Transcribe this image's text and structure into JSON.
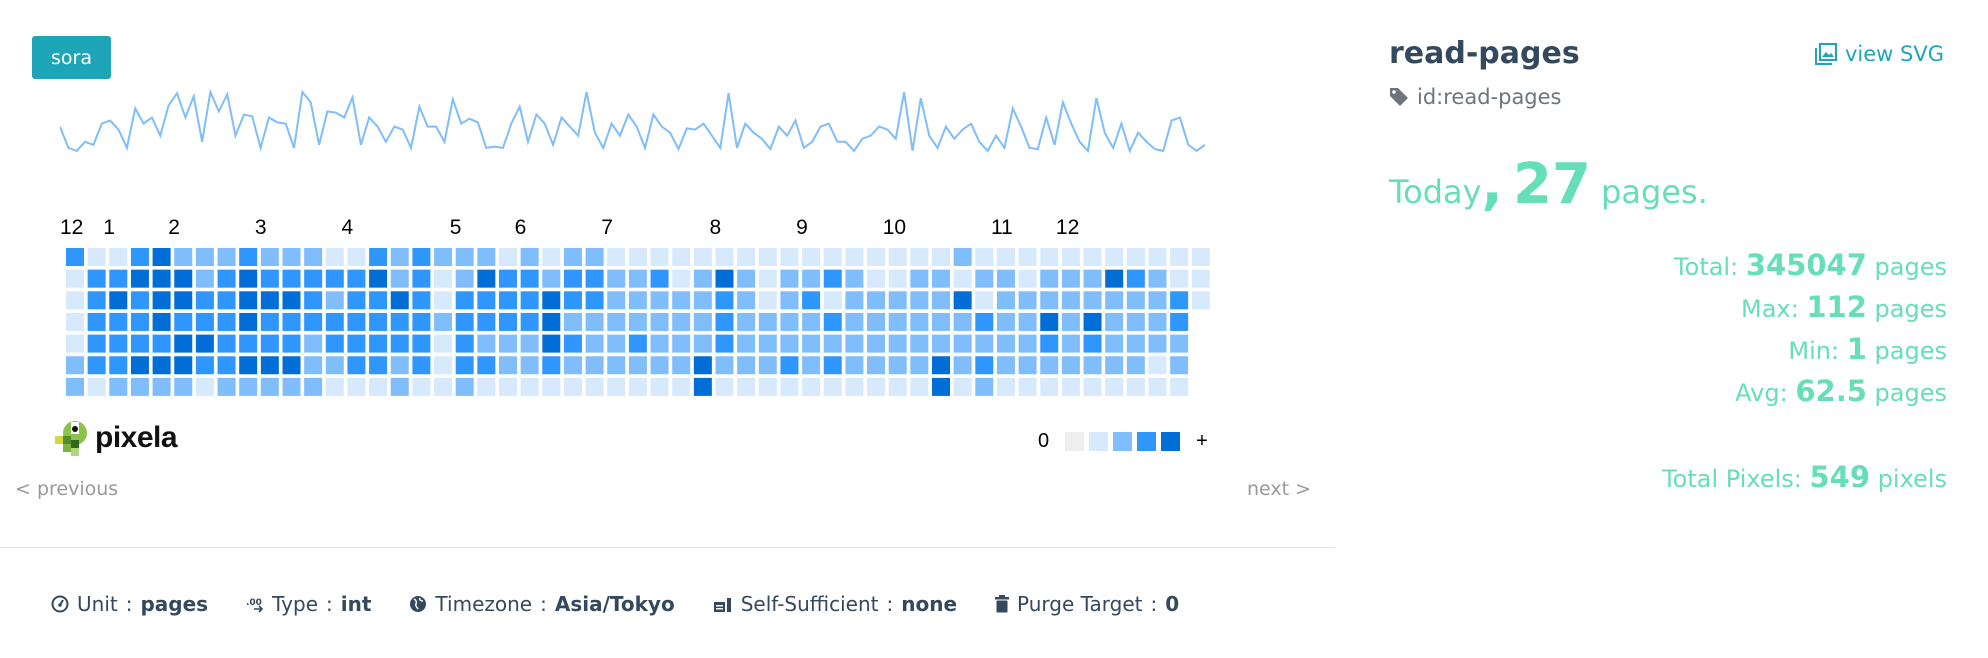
{
  "user_badge": "sora",
  "graph": {
    "name": "read-pages",
    "id_label": "id:read-pages",
    "view_svg_label": "view SVG",
    "today_prefix": "Today",
    "today_sep": ",",
    "today_value": "27",
    "today_suffix": "pages."
  },
  "stats": [
    {
      "label": "Total:",
      "value": "345047",
      "unit": "pages"
    },
    {
      "label": "Max:",
      "value": "112",
      "unit": "pages"
    },
    {
      "label": "Min:",
      "value": "1",
      "unit": "pages"
    },
    {
      "label": "Avg:",
      "value": "62.5",
      "unit": "pages"
    },
    {
      "label": "Total Pixels:",
      "value": "549",
      "unit": "pixels"
    }
  ],
  "colors": {
    "accent": "#1ea6b8",
    "stat": "#66dfb8",
    "levels": [
      "#eeeeee",
      "#d6e9fd",
      "#80bdfc",
      "#2e96fd",
      "#006ed6"
    ],
    "spark": "#7fbdfb"
  },
  "chart_data": {
    "type": "heatmap",
    "months": [
      "12",
      "1",
      "2",
      "3",
      "4",
      "5",
      "6",
      "7",
      "8",
      "9",
      "10",
      "11",
      "12"
    ],
    "month_columns": [
      0,
      2,
      5,
      9,
      13,
      18,
      21,
      25,
      30,
      34,
      38,
      43,
      46
    ],
    "levels_by_week": [
      "3111122",
      "1333331",
      "1343332",
      "3433342",
      "4444342",
      "2443442",
      "2233431",
      "2333332",
      "3444342",
      "2343342",
      "2343342",
      "2333222",
      "1323321",
      "1333331",
      "3433331",
      "2243322",
      "3333331",
      "2112111",
      "2233332",
      "2433231",
      "1333221",
      "2333221",
      "1244431",
      "2332321",
      "2332221",
      "1222221",
      "1222321",
      "1322221",
      "1122221",
      "1222244",
      "1433321",
      "1222221",
      "1112221",
      "1222231",
      "1232221",
      "1313231",
      "1222221",
      "1122221",
      "1122221",
      "1222221",
      "1222244",
      "2142221",
      "1213232",
      "1222221",
      "1122221",
      "1224321",
      "1222221",
      "1224321",
      "1422221",
      "1322221",
      "1222211",
      "1133221",
      "111"
    ],
    "legend": {
      "min_label": "0",
      "max_label": "+"
    },
    "sparkline": [
      55,
      20,
      15,
      30,
      25,
      60,
      65,
      50,
      20,
      85,
      60,
      70,
      40,
      90,
      110,
      70,
      105,
      30,
      112,
      80,
      108,
      40,
      75,
      72,
      20,
      70,
      62,
      60,
      20,
      112,
      95,
      25,
      80,
      78,
      70,
      103,
      25,
      70,
      55,
      30,
      55,
      50,
      20,
      88,
      55,
      55,
      30,
      100,
      60,
      68,
      62,
      20,
      22,
      20,
      60,
      88,
      30,
      75,
      60,
      25,
      70,
      55,
      40,
      112,
      45,
      20,
      60,
      40,
      75,
      55,
      20,
      75,
      55,
      45,
      18,
      52,
      50,
      60,
      40,
      20,
      110,
      20,
      60,
      45,
      35,
      18,
      55,
      40,
      65,
      20,
      30,
      55,
      60,
      30,
      30,
      15,
      35,
      40,
      55,
      50,
      35,
      112,
      15,
      102,
      40,
      20,
      55,
      35,
      50,
      60,
      30,
      15,
      40,
      20,
      85,
      55,
      20,
      18,
      70,
      25,
      95,
      60,
      30,
      15,
      102,
      45,
      20,
      60,
      15,
      45,
      30,
      18,
      15,
      65,
      70,
      25,
      15,
      25
    ]
  },
  "logo_text": "pixela",
  "pager": {
    "previous": "< previous",
    "next": "next >"
  },
  "footer": [
    {
      "icon": "gauge-icon",
      "label": "Unit",
      "value": "pages"
    },
    {
      "icon": "decimal-icon",
      "label": "Type",
      "value": "int"
    },
    {
      "icon": "globe-icon",
      "label": "Timezone",
      "value": "Asia/Tokyo"
    },
    {
      "icon": "self-sufficient-icon",
      "label": "Self-Sufficient",
      "value": "none"
    },
    {
      "icon": "trash-icon",
      "label": "Purge Target",
      "value": "0"
    }
  ],
  "footer_sep": ":"
}
